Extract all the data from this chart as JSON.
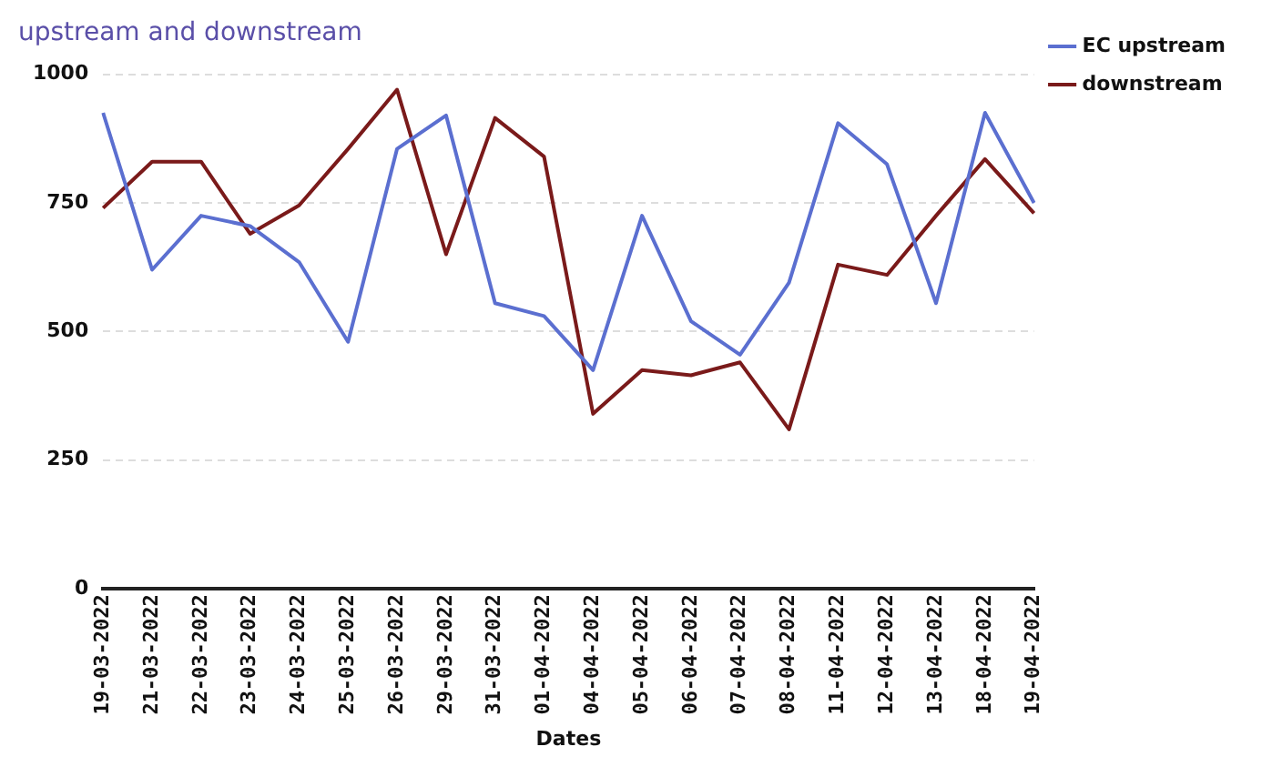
{
  "chart_data": {
    "type": "line",
    "title": "upstream and downstream",
    "xlabel": "Dates",
    "categories": [
      "19-03-2022",
      "21-03-2022",
      "22-03-2022",
      "23-03-2022",
      "24-03-2022",
      "25-03-2022",
      "26-03-2022",
      "29-03-2022",
      "31-03-2022",
      "01-04-2022",
      "04-04-2022",
      "05-04-2022",
      "06-04-2022",
      "07-04-2022",
      "08-04-2022",
      "11-04-2022",
      "12-04-2022",
      "13-04-2022",
      "18-04-2022",
      "19-04-2022"
    ],
    "series": [
      {
        "name": "EC upstream",
        "color": "#5b6fd0",
        "values": [
          925,
          620,
          725,
          705,
          635,
          480,
          855,
          920,
          555,
          530,
          425,
          725,
          520,
          455,
          595,
          905,
          825,
          555,
          925,
          750
        ]
      },
      {
        "name": "downstream",
        "color": "#7a1a1a",
        "values": [
          740,
          830,
          830,
          690,
          745,
          855,
          970,
          650,
          915,
          840,
          340,
          425,
          415,
          440,
          310,
          630,
          610,
          725,
          835,
          730
        ]
      }
    ],
    "ylim": [
      0,
      1000
    ],
    "yticks": [
      0,
      250,
      500,
      750,
      1000
    ],
    "grid": "y",
    "legend": "right",
    "marker": "none",
    "line_style": "solid"
  }
}
